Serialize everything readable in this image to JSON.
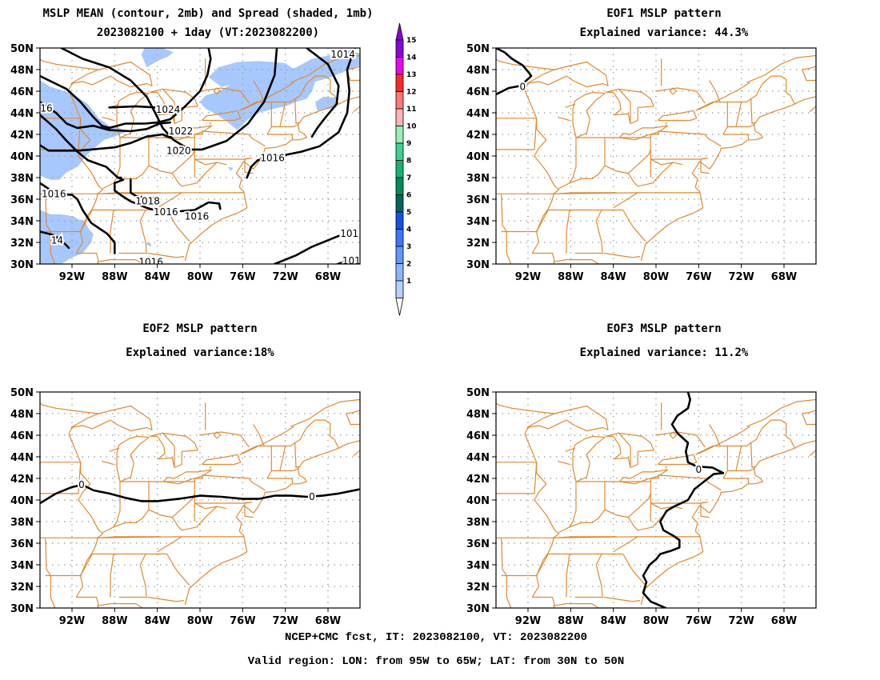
{
  "panels": [
    {
      "id": "p1",
      "title1": "MSLP MEAN (contour, 2mb) and Spread (shaded, 1mb)",
      "title2": "2023082100 + 1day (VT:2023082200)"
    },
    {
      "id": "p2",
      "title1": "EOF1 MSLP pattern",
      "title2": "Explained variance: 44.3%"
    },
    {
      "id": "p3",
      "title1": "EOF2 MSLP pattern",
      "title2": "Explained variance:18%"
    },
    {
      "id": "p4",
      "title1": "EOF3 MSLP pattern",
      "title2": "Explained variance: 11.2%"
    }
  ],
  "axes": {
    "lat_labels": [
      "50N",
      "48N",
      "46N",
      "44N",
      "42N",
      "40N",
      "38N",
      "36N",
      "34N",
      "32N",
      "30N"
    ],
    "lon_labels": [
      "92W",
      "88W",
      "84W",
      "80W",
      "76W",
      "72W",
      "68W"
    ],
    "lat_range": [
      30,
      50
    ],
    "lon_range": [
      -95,
      -65
    ]
  },
  "colorbar": {
    "labels": [
      "1",
      "2",
      "3",
      "4",
      "5",
      "6",
      "7",
      "8",
      "9",
      "10",
      "11",
      "12",
      "13",
      "14",
      "15"
    ],
    "colors": [
      "#b4d2ff",
      "#8cb4ff",
      "#6496ff",
      "#3c78ff",
      "#1450e6",
      "#006464",
      "#008c5a",
      "#14b46e",
      "#3cd296",
      "#96f0b4",
      "#ffb4b4",
      "#ff7878",
      "#ff2828",
      "#f000f0",
      "#8c00dc"
    ]
  },
  "contour_labels": {
    "mean": [
      "1024",
      "1022",
      "1020",
      "1016",
      "1018",
      "1016",
      "1016",
      "1014",
      "16",
      "14",
      "1016",
      "101",
      "101"
    ],
    "eof1": [
      "0"
    ],
    "eof2": [
      "0",
      "0"
    ],
    "eof3": [
      "0"
    ]
  },
  "colors": {
    "coast": "#e08a30",
    "contour": "#000000",
    "grid": "#9a9a9a",
    "spread": "#a6c8ff"
  },
  "footer": {
    "line1": "NCEP+CMC fcst, IT: 2023082100, VT: 2023082200",
    "line2": "Valid region: LON: from 95W to 65W; LAT: from 30N to 50N"
  }
}
